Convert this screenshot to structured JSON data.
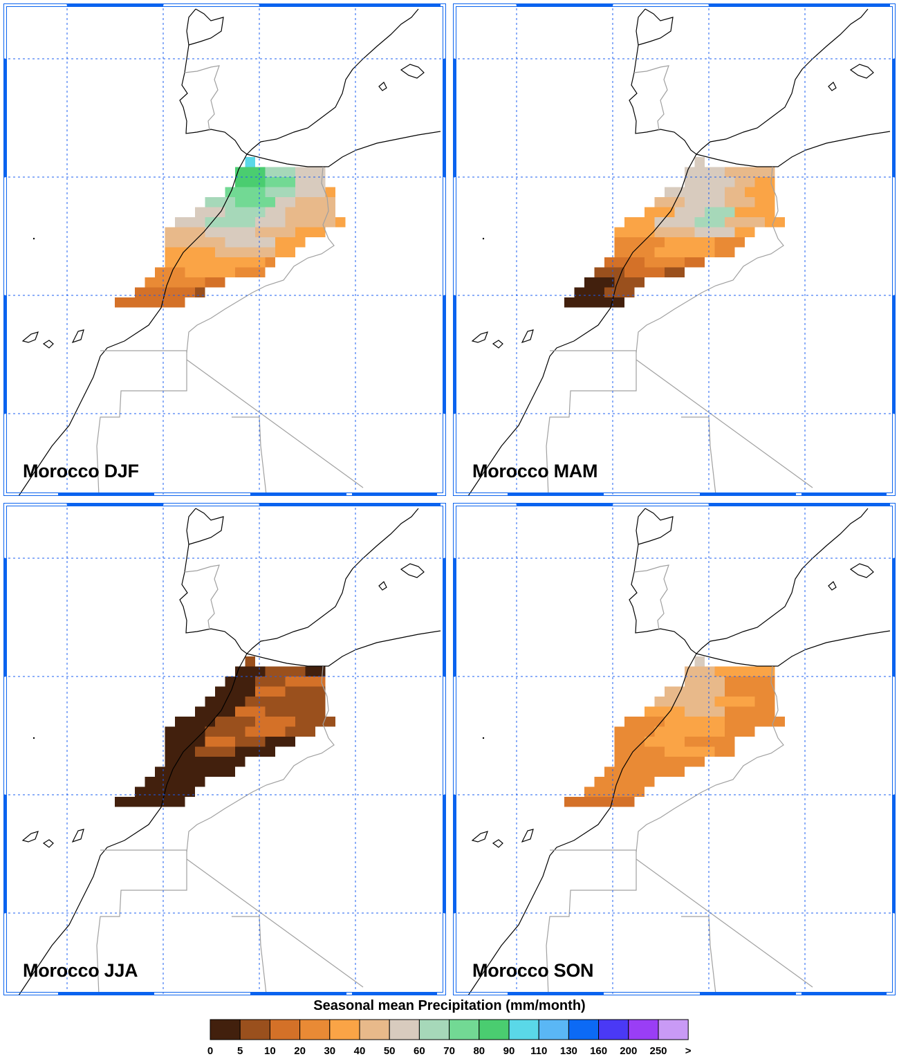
{
  "panels": [
    {
      "label": "Morocco DJF",
      "season": "DJF"
    },
    {
      "label": "Morocco MAM",
      "season": "MAM"
    },
    {
      "label": "Morocco JJA",
      "season": "JJA"
    },
    {
      "label": "Morocco SON",
      "season": "SON"
    }
  ],
  "colorbar": {
    "title": "Seasonal mean Precipitation (mm/month)",
    "ticks": [
      "0",
      "5",
      "10",
      "20",
      "30",
      "40",
      "50",
      "60",
      "70",
      "80",
      "90",
      "110",
      "130",
      "160",
      "200",
      "250",
      ">"
    ],
    "colors": [
      "#42200d",
      "#9a501d",
      "#d47128",
      "#e98a35",
      "#faa446",
      "#e8b98a",
      "#d8cbbe",
      "#a6d8b9",
      "#72d994",
      "#4acd70",
      "#5ad8e8",
      "#5ab7f5",
      "#0c6af5",
      "#4a39f5",
      "#9a3ef5",
      "#c99af5"
    ]
  },
  "frame_color": "#0a63ef",
  "grid_color": "#1a5cf0"
}
